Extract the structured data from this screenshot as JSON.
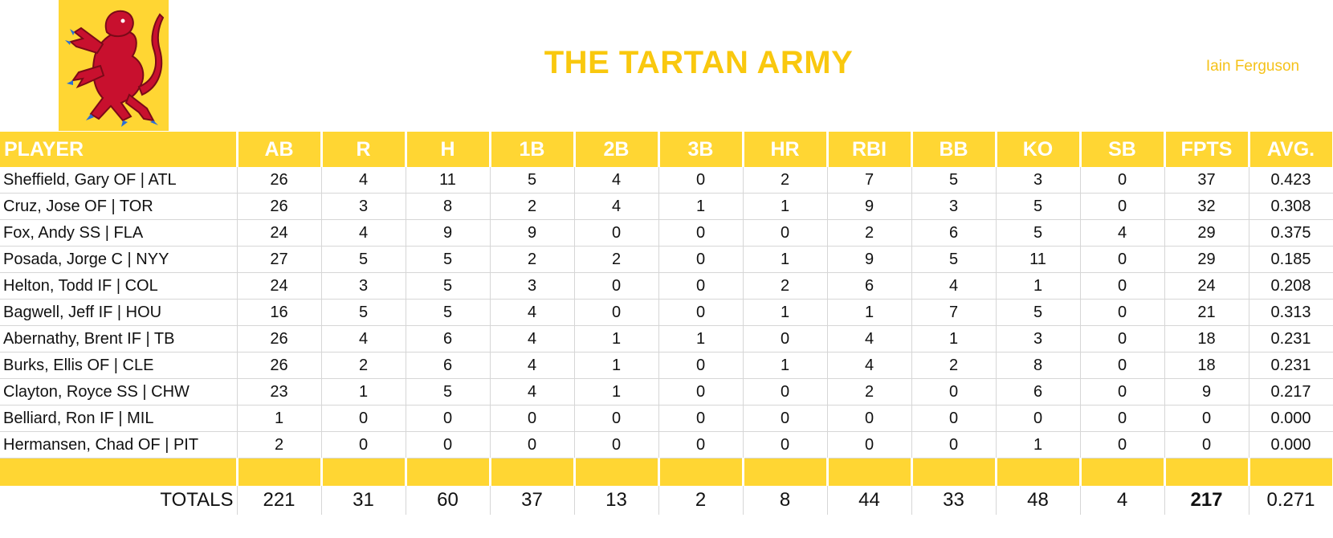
{
  "team": {
    "name": "THE TARTAN ARMY",
    "owner": "Iain Ferguson",
    "logo_icon": "lion-rampant-icon",
    "accent_color": "#ffd633",
    "logo_lion_color": "#c8102e"
  },
  "table": {
    "headers": [
      "PLAYER",
      "AB",
      "R",
      "H",
      "1B",
      "2B",
      "3B",
      "HR",
      "RBI",
      "BB",
      "KO",
      "SB",
      "FPTS",
      "AVG."
    ],
    "rows": [
      [
        "Sheffield, Gary OF | ATL",
        "26",
        "4",
        "11",
        "5",
        "4",
        "0",
        "2",
        "7",
        "5",
        "3",
        "0",
        "37",
        "0.423"
      ],
      [
        "Cruz, Jose OF | TOR",
        "26",
        "3",
        "8",
        "2",
        "4",
        "1",
        "1",
        "9",
        "3",
        "5",
        "0",
        "32",
        "0.308"
      ],
      [
        "Fox, Andy SS | FLA",
        "24",
        "4",
        "9",
        "9",
        "0",
        "0",
        "0",
        "2",
        "6",
        "5",
        "4",
        "29",
        "0.375"
      ],
      [
        "Posada, Jorge C | NYY",
        "27",
        "5",
        "5",
        "2",
        "2",
        "0",
        "1",
        "9",
        "5",
        "11",
        "0",
        "29",
        "0.185"
      ],
      [
        "Helton, Todd IF | COL",
        "24",
        "3",
        "5",
        "3",
        "0",
        "0",
        "2",
        "6",
        "4",
        "1",
        "0",
        "24",
        "0.208"
      ],
      [
        "Bagwell, Jeff IF | HOU",
        "16",
        "5",
        "5",
        "4",
        "0",
        "0",
        "1",
        "1",
        "7",
        "5",
        "0",
        "21",
        "0.313"
      ],
      [
        "Abernathy, Brent IF | TB",
        "26",
        "4",
        "6",
        "4",
        "1",
        "1",
        "0",
        "4",
        "1",
        "3",
        "0",
        "18",
        "0.231"
      ],
      [
        "Burks, Ellis OF | CLE",
        "26",
        "2",
        "6",
        "4",
        "1",
        "0",
        "1",
        "4",
        "2",
        "8",
        "0",
        "18",
        "0.231"
      ],
      [
        "Clayton, Royce SS | CHW",
        "23",
        "1",
        "5",
        "4",
        "1",
        "0",
        "0",
        "2",
        "0",
        "6",
        "0",
        "9",
        "0.217"
      ],
      [
        "Belliard, Ron IF | MIL",
        "1",
        "0",
        "0",
        "0",
        "0",
        "0",
        "0",
        "0",
        "0",
        "0",
        "0",
        "0",
        "0.000"
      ],
      [
        "Hermansen, Chad OF | PIT",
        "2",
        "0",
        "0",
        "0",
        "0",
        "0",
        "0",
        "0",
        "0",
        "1",
        "0",
        "0",
        "0.000"
      ]
    ],
    "totals": [
      "TOTALS",
      "221",
      "31",
      "60",
      "37",
      "13",
      "2",
      "8",
      "44",
      "33",
      "48",
      "4",
      "217",
      "0.271"
    ]
  }
}
